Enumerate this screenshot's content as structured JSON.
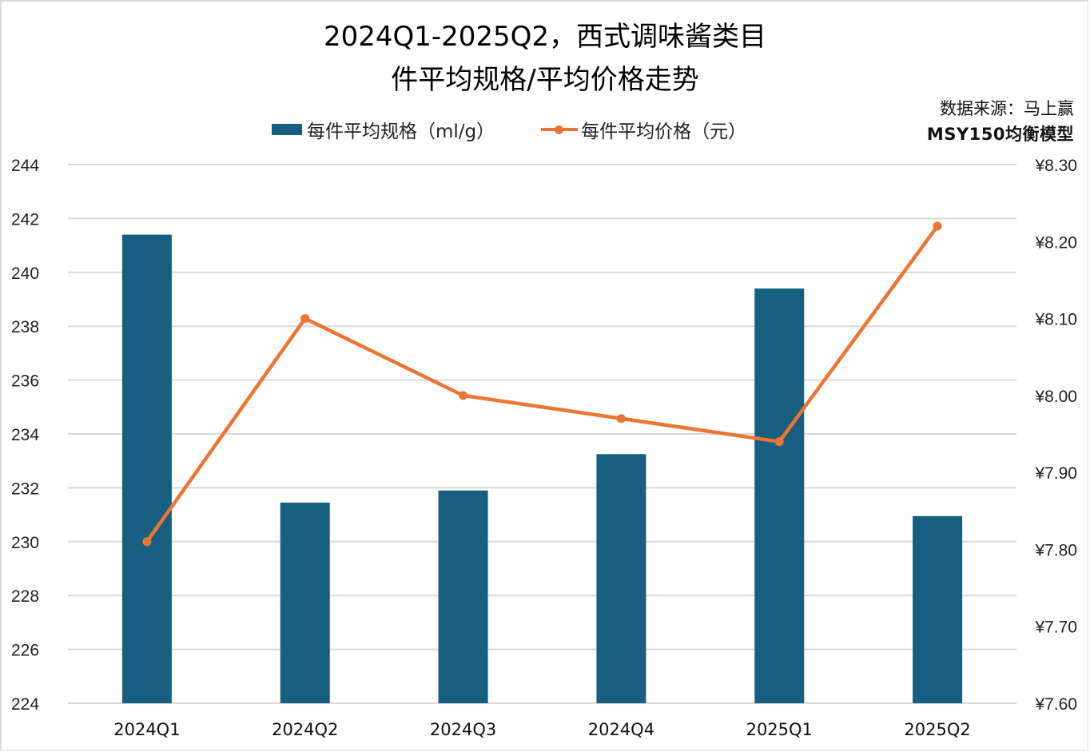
{
  "title": {
    "line1": "2024Q1-2025Q2，西式调味酱类目",
    "line2": "件平均规格/平均价格走势"
  },
  "legend": {
    "bar_label": "每件平均规格（ml/g）",
    "line_label": "每件平均价格（元）"
  },
  "source": {
    "line1": "数据来源：马上赢",
    "line2": "MSY150均衡模型"
  },
  "colors": {
    "bar": "#175f80",
    "line": "#ed7431",
    "grid": "#d9d9d9"
  },
  "axes": {
    "left_ticks": [
      "244",
      "242",
      "240",
      "238",
      "236",
      "234",
      "232",
      "230",
      "228",
      "226",
      "224"
    ],
    "right_ticks": [
      "¥8.30",
      "¥8.20",
      "¥8.10",
      "¥8.00",
      "¥7.90",
      "¥7.80",
      "¥7.70",
      "¥7.60"
    ]
  },
  "chart_data": {
    "type": "bar",
    "title": "2024Q1-2025Q2，西式调味酱类目件平均规格/平均价格走势",
    "categories": [
      "2024Q1",
      "2024Q2",
      "2024Q3",
      "2024Q4",
      "2025Q1",
      "2025Q2"
    ],
    "series": [
      {
        "name": "每件平均规格（ml/g）",
        "type": "bar",
        "axis": "left",
        "values": [
          241.4,
          231.45,
          231.9,
          233.25,
          239.4,
          230.95
        ]
      },
      {
        "name": "每件平均价格（元）",
        "type": "line",
        "axis": "right",
        "values": [
          7.81,
          8.1,
          8.0,
          7.97,
          7.94,
          8.22
        ]
      }
    ],
    "xlabel": "",
    "ylabel": "",
    "ylim": [
      224,
      244
    ],
    "y2lim": [
      7.6,
      8.3
    ],
    "grid": true,
    "legend_position": "top",
    "annotations": [
      "数据来源：马上赢",
      "MSY150均衡模型"
    ]
  }
}
